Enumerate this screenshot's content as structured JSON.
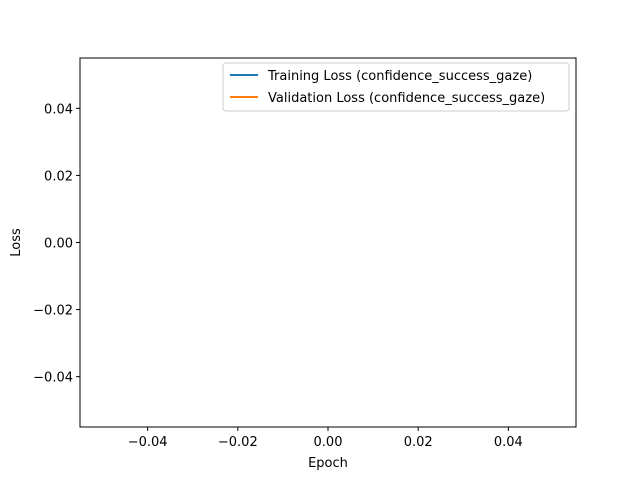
{
  "chart_data": {
    "type": "line",
    "title": "",
    "xlabel": "Epoch",
    "ylabel": "Loss",
    "xlim": [
      -0.055,
      0.055
    ],
    "ylim": [
      -0.055,
      0.055
    ],
    "xticks": [
      -0.04,
      -0.02,
      0.0,
      0.02,
      0.04
    ],
    "yticks": [
      -0.04,
      -0.02,
      0.0,
      0.02,
      0.04
    ],
    "xtick_labels": [
      "−0.04",
      "−0.02",
      "0.00",
      "0.02",
      "0.04"
    ],
    "ytick_labels": [
      "−0.04",
      "−0.02",
      "0.00",
      "0.02",
      "0.04"
    ],
    "grid": false,
    "legend_position": "top-right",
    "series": [
      {
        "name": "Training Loss (confidence_success_gaze)",
        "color": "#1f77b4",
        "x": [],
        "y": []
      },
      {
        "name": "Validation Loss (confidence_success_gaze)",
        "color": "#ff7f0e",
        "x": [],
        "y": []
      }
    ]
  }
}
